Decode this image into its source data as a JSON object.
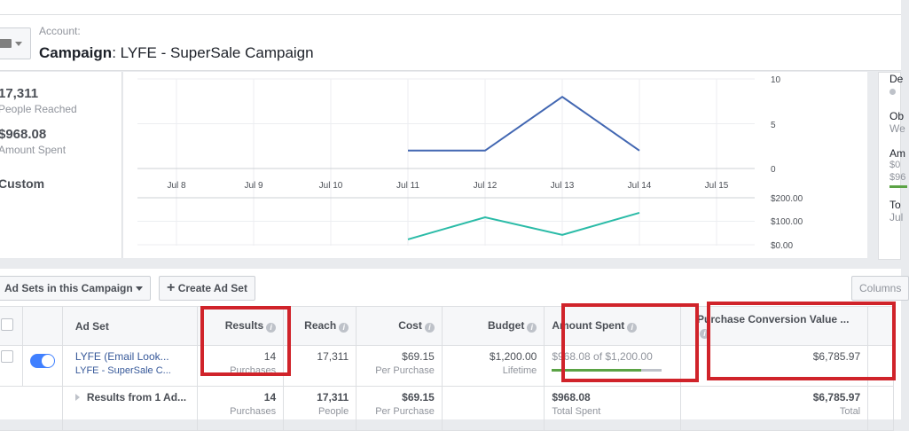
{
  "header": {
    "account_label": "Account:",
    "title_prefix": "Campaign",
    "title_name": ": LYFE - SuperSale Campaign"
  },
  "stats": [
    {
      "value": "17,311",
      "label": "People Reached"
    },
    {
      "value": "$968.08",
      "label": "Amount Spent"
    }
  ],
  "date_range": "Custom",
  "right_panel": {
    "items": [
      "De",
      "Ob",
      "We",
      "Am",
      "$0",
      "$96",
      "To",
      "Jul"
    ]
  },
  "chart_data": [
    {
      "type": "line",
      "x": [
        "Jul 8",
        "Jul 9",
        "Jul 10",
        "Jul 11",
        "Jul 12",
        "Jul 13",
        "Jul 14",
        "Jul 15"
      ],
      "y_ticks": [
        "10",
        "5",
        "0"
      ],
      "ylim": [
        0,
        10
      ],
      "color": "#4267b2",
      "points": [
        {
          "x": "Jul 11",
          "y": 2
        },
        {
          "x": "Jul 12",
          "y": 2
        },
        {
          "x": "Jul 13",
          "y": 8
        },
        {
          "x": "Jul 14",
          "y": 2
        }
      ]
    },
    {
      "type": "line",
      "y_ticks": [
        "$200.00",
        "$100.00",
        "$0.00"
      ],
      "ylim": [
        0,
        200
      ],
      "color": "#2abba7",
      "points": [
        {
          "x": "Jul 11",
          "y": 23
        },
        {
          "x": "Jul 12",
          "y": 117
        },
        {
          "x": "Jul 13",
          "y": 42
        },
        {
          "x": "Jul 14",
          "y": 136
        }
      ]
    }
  ],
  "toolbar": {
    "adsets_dropdown": "Ad Sets in this Campaign",
    "create_button": "Create Ad Set",
    "columns_button": "Columns"
  },
  "table": {
    "headers": {
      "adset": "Ad Set",
      "results": "Results",
      "reach": "Reach",
      "cost": "Cost",
      "budget": "Budget",
      "amount_spent": "Amount Spent",
      "purchase_value": "Purchase Conversion Value ..."
    },
    "row": {
      "name": "LYFE (Email Look...",
      "campaign": "LYFE - SuperSale C...",
      "results": "14",
      "results_sub": "Purchases",
      "reach": "17,311",
      "cost": "$69.15",
      "cost_sub": "Per Purchase",
      "budget": "$1,200.00",
      "budget_sub": "Lifetime",
      "spent": "$968.08",
      "spent_of": " of $1,200.00",
      "spent_progress": 0.81,
      "purchase_value": "$6,785.97",
      "enabled": true
    },
    "total": {
      "label": "Results from 1 Ad...",
      "results": "14",
      "results_sub": "Purchases",
      "reach": "17,311",
      "reach_sub": "People",
      "cost": "$69.15",
      "cost_sub": "Per Purchase",
      "spent": "$968.08",
      "spent_sub": "Total Spent",
      "purchase_value": "$6,785.97",
      "purchase_sub": "Total"
    }
  },
  "colors": {
    "highlight": "#d0232a",
    "toggle": "#4080ff",
    "progress": "#5ba345"
  }
}
